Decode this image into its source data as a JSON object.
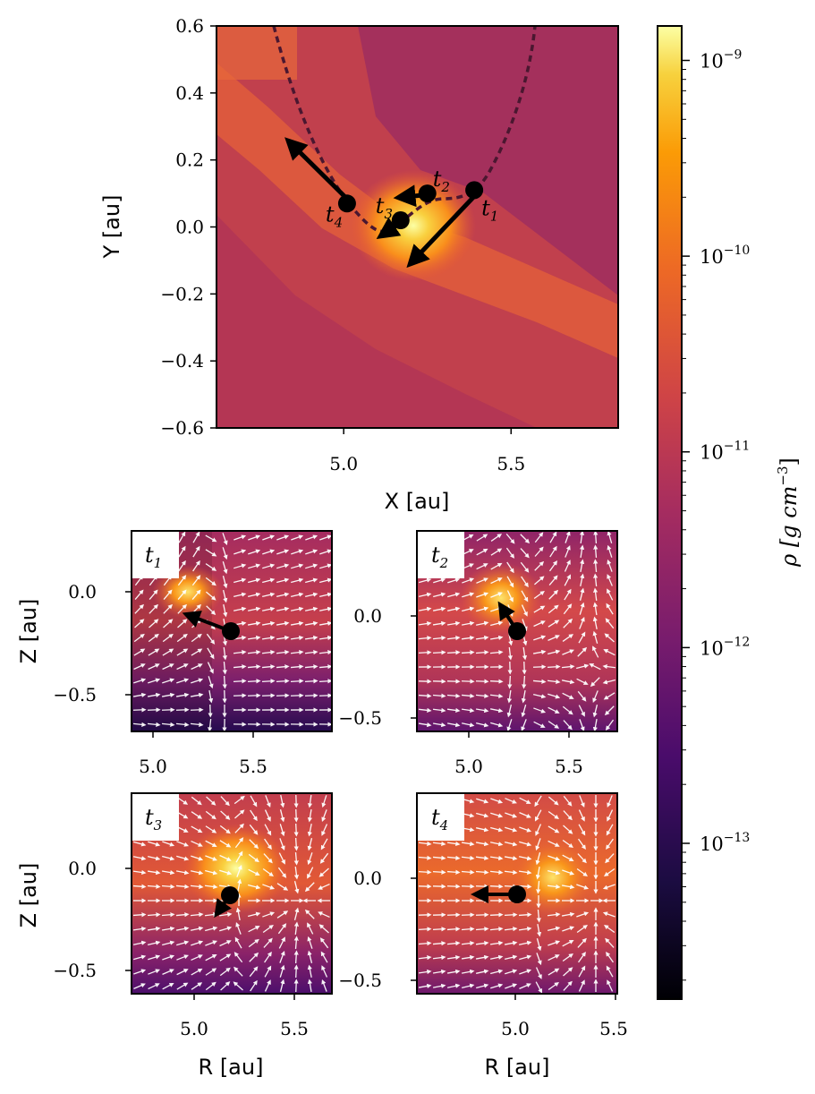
{
  "main": {
    "xlabel": "X [au]",
    "ylabel": "Y [au]",
    "xlim": [
      4.62,
      5.82
    ],
    "ylim": [
      -0.6,
      0.6
    ],
    "xticks": [
      "5.0",
      "5.5"
    ],
    "yticks": [
      "0.6",
      "0.4",
      "0.2",
      "0.0",
      "−0.2",
      "−0.4",
      "−0.6"
    ],
    "markers": [
      {
        "name": "t",
        "sub": "1",
        "x": 5.39,
        "y": 0.11
      },
      {
        "name": "t",
        "sub": "2",
        "x": 5.25,
        "y": 0.1
      },
      {
        "name": "t",
        "sub": "3",
        "x": 5.17,
        "y": 0.02
      },
      {
        "name": "t",
        "sub": "4",
        "x": 5.01,
        "y": 0.07
      }
    ]
  },
  "colorbar": {
    "label": "ρ [g cm⁻³]",
    "label_main": "ρ [g cm",
    "label_exp": "−3",
    "label_close": "]",
    "ticks": [
      {
        "base": "10",
        "exp": "−9"
      },
      {
        "base": "10",
        "exp": "−10"
      },
      {
        "base": "10",
        "exp": "−11"
      },
      {
        "base": "10",
        "exp": "−12"
      },
      {
        "base": "10",
        "exp": "−13"
      }
    ]
  },
  "panels": [
    {
      "id": "t1",
      "label_main": "t",
      "label_sub": "1",
      "xticks": [
        "5.0",
        "5.5"
      ],
      "yticks": [
        "0.0",
        "−0.5"
      ],
      "ylabel": "Z [au]",
      "xlabel": ""
    },
    {
      "id": "t2",
      "label_main": "t",
      "label_sub": "2",
      "xticks": [
        "5.0",
        "5.5"
      ],
      "yticks": [
        "0.0",
        "−0.5"
      ],
      "ylabel": "",
      "xlabel": ""
    },
    {
      "id": "t3",
      "label_main": "t",
      "label_sub": "3",
      "xticks": [
        "5.0",
        "5.5"
      ],
      "yticks": [
        "0.0",
        "−0.5"
      ],
      "ylabel": "Z [au]",
      "xlabel": "R [au]"
    },
    {
      "id": "t4",
      "label_main": "t",
      "label_sub": "4",
      "xticks": [
        "5.0",
        "5.5"
      ],
      "yticks": [
        "0.0",
        "−0.5"
      ],
      "ylabel": "",
      "xlabel": "R [au]"
    }
  ],
  "chart_data": [
    {
      "type": "heatmap",
      "title": "",
      "xlabel": "X [au]",
      "ylabel": "Y [au]",
      "xlim": [
        4.62,
        5.82
      ],
      "ylim": [
        -0.6,
        0.6
      ],
      "colorscale": "inferno (log)",
      "trajectory_points": [
        {
          "label": "t1",
          "x": 5.39,
          "y": 0.11
        },
        {
          "label": "t2",
          "x": 5.25,
          "y": 0.1
        },
        {
          "label": "t3",
          "x": 5.17,
          "y": 0.02
        },
        {
          "label": "t4",
          "x": 5.01,
          "y": 0.07
        }
      ]
    },
    {
      "type": "heatmap",
      "title": "t1",
      "xlabel": "",
      "ylabel": "Z [au]",
      "xlim": [
        4.88,
        5.88
      ],
      "ylim": [
        -0.7,
        0.3
      ],
      "marker": {
        "x": 5.39,
        "y": -0.19
      }
    },
    {
      "type": "heatmap",
      "title": "t2",
      "xlabel": "",
      "ylabel": "",
      "xlim": [
        4.74,
        5.74
      ],
      "ylim": [
        -0.57,
        0.43
      ],
      "marker": {
        "x": 5.24,
        "y": -0.07
      }
    },
    {
      "type": "heatmap",
      "title": "t3",
      "xlabel": "R [au]",
      "ylabel": "Z [au]",
      "xlim": [
        4.66,
        5.66
      ],
      "ylim": [
        -0.63,
        0.37
      ],
      "marker": {
        "x": 5.17,
        "y": -0.13
      }
    },
    {
      "type": "heatmap",
      "title": "t4",
      "xlabel": "R [au]",
      "ylabel": "",
      "xlim": [
        4.51,
        5.51
      ],
      "ylim": [
        -0.6,
        0.4
      ],
      "marker": {
        "x": 5.01,
        "y": -0.1
      }
    },
    {
      "type": "colorbar",
      "label": "ρ [g cm⁻³]",
      "scale": "log",
      "range": [
        1.6e-14,
        1.5e-09
      ],
      "ticks": [
        "1e-9",
        "1e-10",
        "1e-11",
        "1e-12",
        "1e-13"
      ]
    }
  ]
}
